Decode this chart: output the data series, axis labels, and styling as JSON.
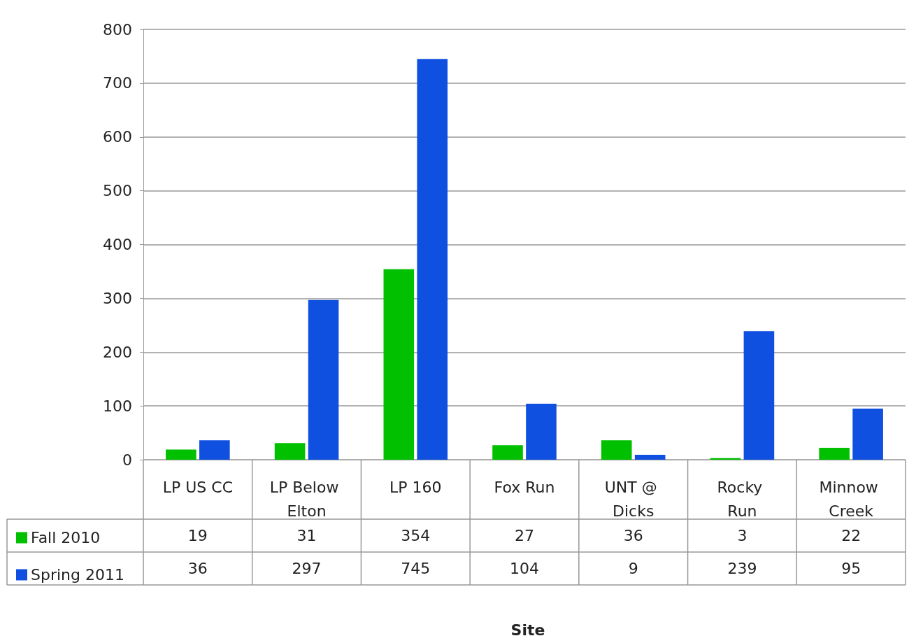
{
  "chart_data": {
    "type": "bar",
    "annotations": [
      "Site"
    ],
    "categories": [
      "LP US CC",
      "LP Below Elton",
      "LP 160",
      "Fox Run",
      "UNT @ Dicks",
      "Rocky Run",
      "Minnow Creek"
    ],
    "series": [
      {
        "name": "Fall 2010",
        "color": "#00c000",
        "values": [
          19,
          31,
          354,
          27,
          36,
          3,
          22
        ]
      },
      {
        "name": "Spring 2011",
        "color": "#1050e0",
        "values": [
          36,
          297,
          745,
          104,
          9,
          239,
          95
        ]
      }
    ],
    "ylim": [
      0,
      800
    ],
    "yticks": [
      0,
      100,
      200,
      300,
      400,
      500,
      600,
      700,
      800
    ],
    "grid": true,
    "legend": "bottom left",
    "data_labels": true
  }
}
